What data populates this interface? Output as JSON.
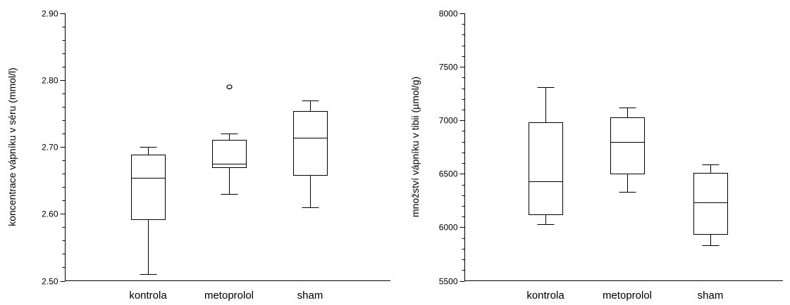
{
  "chart_data": [
    {
      "type": "box",
      "title": "",
      "xlabel": "",
      "ylabel": "koncentrace vápníku v séru (mmol/l)",
      "ylim": [
        2.5,
        2.9
      ],
      "yticks": [
        "2.50",
        "2.60",
        "2.70",
        "2.80",
        "2.90"
      ],
      "minor_tick_step": 0.02,
      "categories": [
        "kontrola",
        "metoprolol",
        "sham"
      ],
      "boxes": [
        {
          "name": "kontrola",
          "min": 2.51,
          "q1": 2.592,
          "median": 2.654,
          "q3": 2.689,
          "max": 2.7,
          "outliers": []
        },
        {
          "name": "metoprolol",
          "min": 2.63,
          "q1": 2.67,
          "median": 2.675,
          "q3": 2.711,
          "max": 2.72,
          "outliers": [
            2.79
          ]
        },
        {
          "name": "sham",
          "min": 2.61,
          "q1": 2.658,
          "median": 2.714,
          "q3": 2.754,
          "max": 2.77,
          "outliers": []
        }
      ]
    },
    {
      "type": "box",
      "title": "",
      "xlabel": "",
      "ylabel": "množství vápníku v tibii (µmol/g)",
      "ylim": [
        5500,
        8000
      ],
      "yticks": [
        "5500",
        "6000",
        "6500",
        "7000",
        "7500",
        "8000"
      ],
      "minor_tick_step": 100,
      "categories": [
        "kontrola",
        "metoprolol",
        "sham"
      ],
      "boxes": [
        {
          "name": "kontrola",
          "min": 6030,
          "q1": 6120,
          "median": 6430,
          "q3": 6980,
          "max": 7310,
          "outliers": []
        },
        {
          "name": "metoprolol",
          "min": 6330,
          "q1": 6500,
          "median": 6800,
          "q3": 7030,
          "max": 7120,
          "outliers": []
        },
        {
          "name": "sham",
          "min": 5830,
          "q1": 5940,
          "median": 6230,
          "q3": 6510,
          "max": 6590,
          "outliers": []
        }
      ]
    }
  ]
}
